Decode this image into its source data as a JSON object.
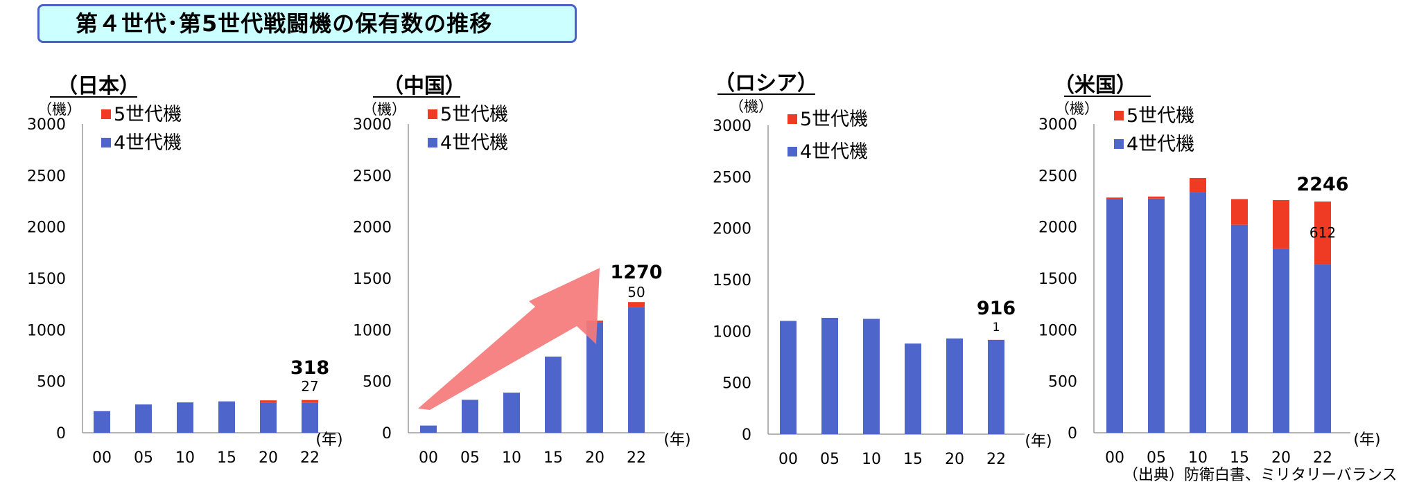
{
  "title": "第４世代･第5世代戦闘機の保有数の推移",
  "source": "（出典）防衛白書、ミリタリーバランス",
  "colors": {
    "gen4": "#4e66cc",
    "gen5": "#ef3b24",
    "arrow": "#f57a7a",
    "title_bg": "#ccffff",
    "title_border": "#4a62c8"
  },
  "chart_data": [
    {
      "type": "bar",
      "title": "（日本）",
      "ylabel": "（機）",
      "xlabel": "(年)",
      "ylim": [
        0,
        3000
      ],
      "yticks": [
        "0",
        "500",
        "1000",
        "1500",
        "2000",
        "2500",
        "3000"
      ],
      "categories": [
        "00",
        "05",
        "10",
        "15",
        "20",
        "22"
      ],
      "series": [
        {
          "name": "4世代機",
          "values": [
            210,
            275,
            295,
            305,
            295,
            291
          ]
        },
        {
          "name": "5世代機",
          "values": [
            0,
            0,
            0,
            0,
            20,
            27
          ]
        }
      ],
      "legend": [
        "5世代機",
        "4世代機"
      ],
      "annotations": [
        {
          "text": "318",
          "bold": true
        },
        {
          "text": "27",
          "bold": false
        }
      ]
    },
    {
      "type": "bar",
      "title": "（中国）",
      "ylabel": "（機）",
      "xlabel": "(年)",
      "ylim": [
        0,
        3000
      ],
      "yticks": [
        "0",
        "500",
        "1000",
        "1500",
        "2000",
        "2500",
        "3000"
      ],
      "categories": [
        "00",
        "05",
        "10",
        "15",
        "20",
        "22"
      ],
      "series": [
        {
          "name": "4世代機",
          "values": [
            70,
            320,
            390,
            740,
            1070,
            1220
          ]
        },
        {
          "name": "5世代機",
          "values": [
            0,
            0,
            0,
            0,
            20,
            50
          ]
        }
      ],
      "legend": [
        "5世代機",
        "4世代機"
      ],
      "annotations": [
        {
          "text": "1270",
          "bold": true
        },
        {
          "text": "50",
          "bold": false
        }
      ]
    },
    {
      "type": "bar",
      "title": "（ロシア）",
      "ylabel": "（機）",
      "xlabel": "(年)",
      "ylim": [
        0,
        3000
      ],
      "yticks": [
        "0",
        "500",
        "1000",
        "1500",
        "2000",
        "2500",
        "3000"
      ],
      "categories": [
        "00",
        "05",
        "10",
        "15",
        "20",
        "22"
      ],
      "series": [
        {
          "name": "4世代機",
          "values": [
            1100,
            1130,
            1120,
            880,
            930,
            915
          ]
        },
        {
          "name": "5世代機",
          "values": [
            0,
            0,
            0,
            0,
            0,
            1
          ]
        }
      ],
      "legend": [
        "5世代機",
        "4世代機"
      ],
      "annotations": [
        {
          "text": "916",
          "bold": true
        },
        {
          "text": "1",
          "bold": false
        }
      ]
    },
    {
      "type": "bar",
      "title": "（米国）",
      "ylabel": "（機）",
      "xlabel": "(年)",
      "ylim": [
        0,
        3000
      ],
      "yticks": [
        "0",
        "500",
        "1000",
        "1500",
        "2000",
        "2500",
        "3000"
      ],
      "categories": [
        "00",
        "05",
        "10",
        "15",
        "20",
        "22"
      ],
      "series": [
        {
          "name": "4世代機",
          "values": [
            2270,
            2275,
            2340,
            2020,
            1790,
            1634
          ]
        },
        {
          "name": "5世代機",
          "values": [
            15,
            20,
            135,
            250,
            470,
            612
          ]
        }
      ],
      "legend": [
        "5世代機",
        "4世代機"
      ],
      "annotations": [
        {
          "text": "2246",
          "bold": true
        },
        {
          "text": "612",
          "bold": false
        }
      ]
    }
  ]
}
